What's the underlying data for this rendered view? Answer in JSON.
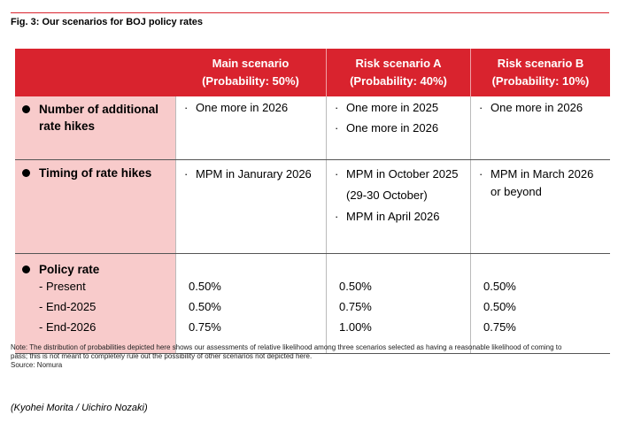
{
  "figure": {
    "title": "Fig. 3: Our scenarios for BOJ policy rates"
  },
  "header": {
    "columns": [
      {
        "line1": "Main scenario",
        "line2": "(Probability: 50%)"
      },
      {
        "line1": "Risk scenario A",
        "line2": "(Probability: 40%)"
      },
      {
        "line1": "Risk scenario B",
        "line2": "(Probability: 10%)"
      }
    ]
  },
  "rows": {
    "hikes": {
      "label_line1": "Number of additional",
      "label_line2": "rate hikes",
      "main": [
        "One more in 2026"
      ],
      "risk_a": [
        "One more in 2025",
        "One more in 2026"
      ],
      "risk_b": [
        "One more in 2026"
      ]
    },
    "timing": {
      "label": "Timing of rate hikes",
      "main": [
        "MPM in Janurary 2026"
      ],
      "risk_a_1": "MPM in October 2025",
      "risk_a_1b": "(29-30 October)",
      "risk_a_2": "MPM in April 2026",
      "risk_b_1": "MPM in March 2026",
      "risk_b_1b": "or beyond"
    },
    "policy": {
      "label": "Policy rate",
      "sub": [
        "- Present",
        "- End-2025",
        "- End-2026"
      ],
      "main": [
        "0.50%",
        "0.50%",
        "0.75%"
      ],
      "risk_a": [
        "0.50%",
        "0.75%",
        "1.00%"
      ],
      "risk_b": [
        "0.50%",
        "0.50%",
        "0.75%"
      ]
    }
  },
  "bullet_char": "·",
  "note": {
    "text1": "Note:  The distribution of probabilities depicted here shows our assessments of relative likelihood among three scenarios selected as having a reasonable likelihood of coming to",
    "text2": "pass; this is not meant to completely rule out the possibility of other scenarios not depicted here.",
    "source": "Source: Nomura"
  },
  "author": "(Kyohei Morita / Uichiro Nozaki)"
}
